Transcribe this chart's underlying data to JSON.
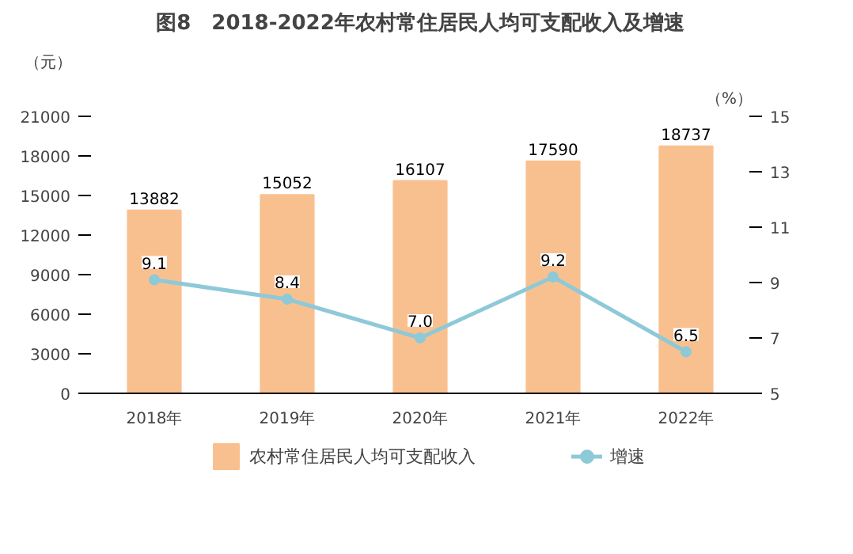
{
  "chart_data": {
    "type": "bar",
    "title": "图8　2018-2022年农村常住居民人均可支配收入及增速",
    "ylabel": "（元）",
    "y2label": "（%）",
    "categories": [
      "2018年",
      "2019年",
      "2020年",
      "2021年",
      "2022年"
    ],
    "series": [
      {
        "name": "农村常住居民人均可支配收入",
        "color": "#f9c08f",
        "values": [
          13882,
          15052,
          16107,
          17590,
          18737
        ]
      },
      {
        "name": "增速",
        "type": "line",
        "color": "#8ec9d8",
        "axis": "y2",
        "marker": "circle",
        "values": [
          9.1,
          8.4,
          7.0,
          9.2,
          6.5
        ],
        "value_labels": [
          "9.1",
          "8.4",
          "7.0",
          "9.2",
          "6.5"
        ]
      }
    ],
    "ylim": [
      0,
      21000
    ],
    "yticks": [
      0,
      3000,
      6000,
      9000,
      12000,
      15000,
      18000,
      21000
    ],
    "y2lim": [
      5,
      15
    ],
    "y2ticks": [
      5,
      7,
      9,
      11,
      13,
      15
    ],
    "data_labels": true,
    "legend": "bottom",
    "grid": false
  }
}
